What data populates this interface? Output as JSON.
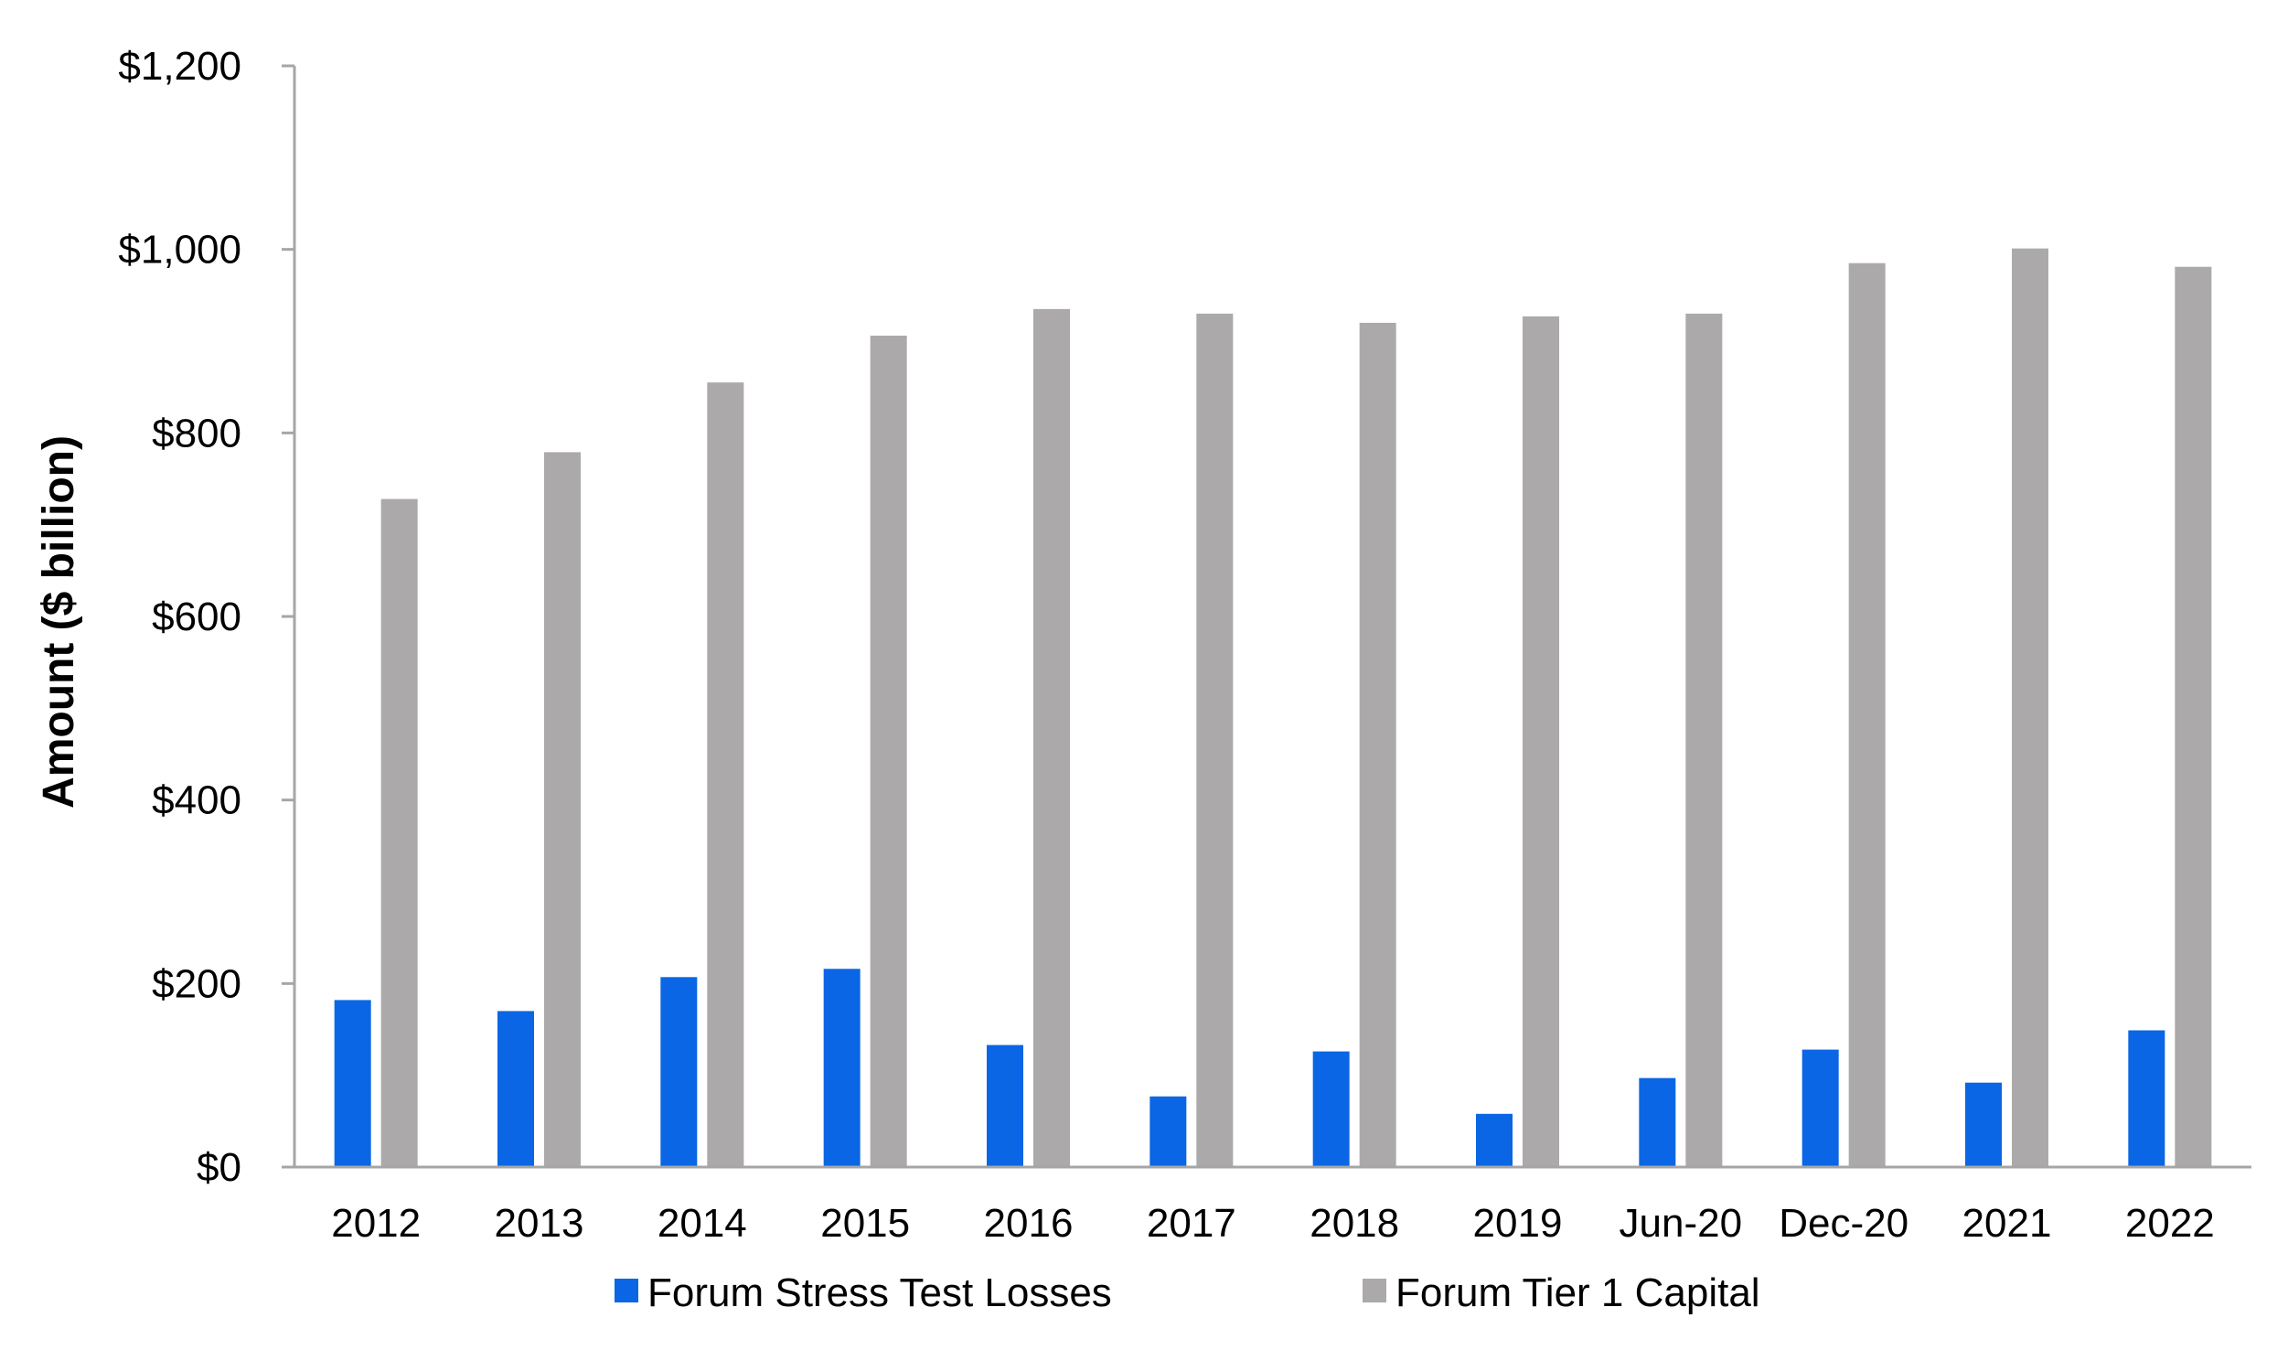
{
  "chart_data": {
    "type": "bar",
    "title": "",
    "xlabel": "",
    "ylabel": "Amount ($ billion)",
    "ylim": [
      0,
      1200
    ],
    "yticks": [
      0,
      200,
      400,
      600,
      800,
      1000,
      1200
    ],
    "ytick_labels": [
      "$0",
      "$200",
      "$400",
      "$600",
      "$800",
      "$1,000",
      "$1,200"
    ],
    "categories": [
      "2012",
      "2013",
      "2014",
      "2015",
      "2016",
      "2017",
      "2018",
      "2019",
      "Jun-20",
      "Dec-20",
      "2021",
      "2022"
    ],
    "series": [
      {
        "name": "Forum Stress Test Losses",
        "color": "#0a66e4",
        "values": [
          182,
          170,
          207,
          216,
          133,
          77,
          126,
          58,
          97,
          128,
          92,
          149
        ]
      },
      {
        "name": "Forum Tier 1 Capital",
        "color": "#aba9a9",
        "values": [
          728,
          779,
          855,
          906,
          935,
          930,
          920,
          927,
          930,
          985,
          1001,
          981
        ]
      }
    ],
    "grid": false,
    "legend_position": "bottom"
  }
}
